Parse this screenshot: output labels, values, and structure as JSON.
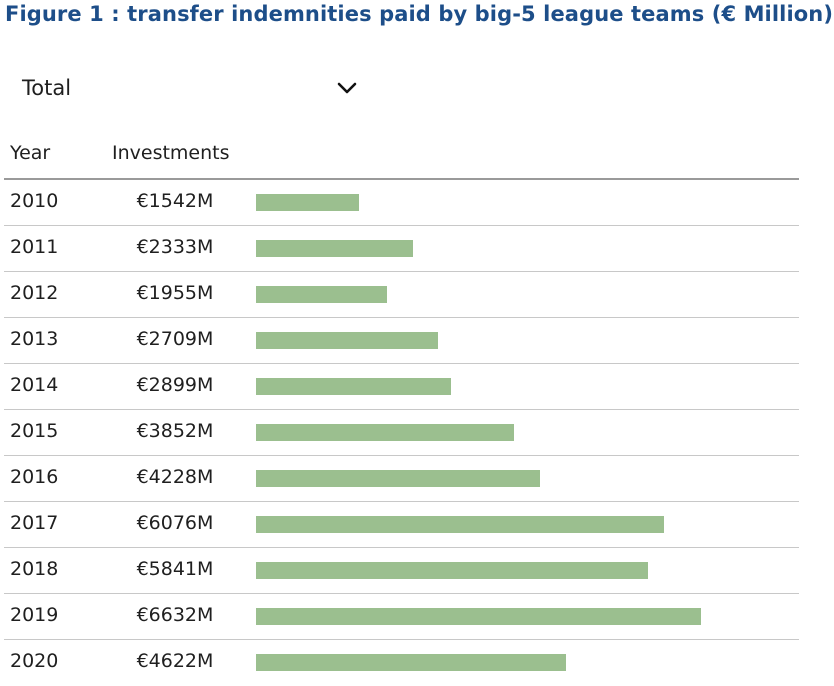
{
  "chart_data": {
    "type": "bar",
    "title": "Figure 1 : transfer indemnities paid by big-5 league teams (€ Million)",
    "filter": {
      "selected": "Total"
    },
    "columns": [
      "Year",
      "Investments"
    ],
    "categories": [
      "2010",
      "2011",
      "2012",
      "2013",
      "2014",
      "2015",
      "2016",
      "2017",
      "2018",
      "2019",
      "2020"
    ],
    "values": [
      1542,
      2333,
      1955,
      2709,
      2899,
      3852,
      4228,
      6076,
      5841,
      6632,
      4622
    ],
    "value_labels": [
      "€1542M",
      "€2333M",
      "€1955M",
      "€2709M",
      "€2899M",
      "€3852M",
      "€4228M",
      "€6076M",
      "€5841M",
      "€6632M",
      "€4622M"
    ],
    "bar_color": "#9bbf8f",
    "title_color": "#1d4e89"
  }
}
